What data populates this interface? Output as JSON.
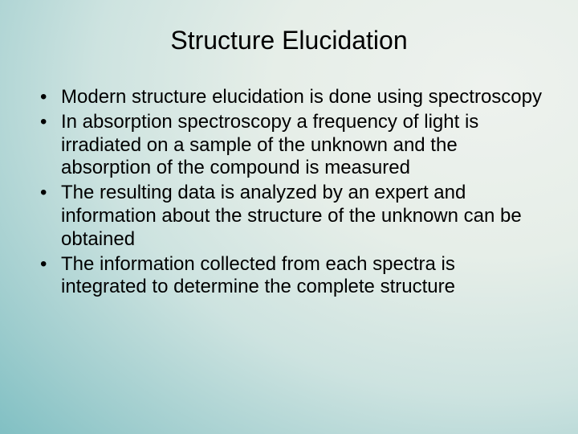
{
  "slide": {
    "title": "Structure Elucidation",
    "bullets": [
      "Modern structure elucidation is done using spectroscopy",
      "In absorption spectroscopy a frequency of light is irradiated on a sample of the unknown and the absorption of the compound is measured",
      "The resulting data is analyzed by an expert and information about the structure of the unknown can be obtained",
      "The information collected from each spectra is integrated to determine the complete structure"
    ]
  },
  "style": {
    "title_fontsize": 32,
    "body_fontsize": 24,
    "text_color": "#000000",
    "bg_gradient_stops": [
      "#eef2ee",
      "#e6eee8",
      "#cde3e0",
      "#9fcdce",
      "#6fb8bd"
    ]
  }
}
